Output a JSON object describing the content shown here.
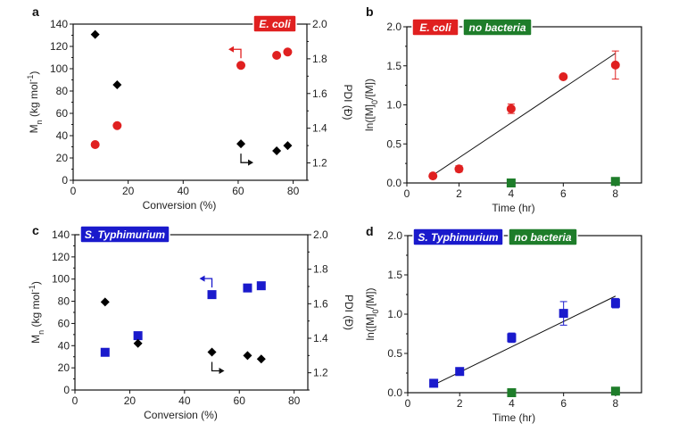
{
  "colors": {
    "ecoli": "#e02020",
    "typhimurium": "#1a1acc",
    "no_bacteria": "#1e7d2a",
    "pdi": "#000000",
    "fit": "#000000"
  },
  "chart_data": [
    {
      "panel": "a",
      "type": "scatter",
      "badge": "E. coli",
      "xlabel": "Conversion (%)",
      "ylabel": "Mn (kg mol-1)",
      "ylabel_parts": {
        "main": "M",
        "sub": "n",
        "rest": " (kg mol",
        "sup": "-1",
        "close": ")"
      },
      "y2label": "PDI (Đ)",
      "xlim": [
        0,
        85
      ],
      "ylim": [
        0,
        140
      ],
      "y2lim": [
        1.1,
        2.0
      ],
      "xticks": [
        0,
        20,
        40,
        60,
        80
      ],
      "yticks": [
        0,
        20,
        40,
        60,
        80,
        100,
        120,
        140
      ],
      "y2ticks": [
        1.2,
        1.4,
        1.6,
        1.8,
        2.0
      ],
      "y2tick_labels": [
        "1.2",
        "1.4",
        "1.6",
        "1.8",
        "2.0"
      ],
      "series": [
        {
          "name": "Mn",
          "axis": "left",
          "marker": "circle",
          "color_key": "ecoli",
          "x": [
            8,
            16,
            61,
            74,
            78
          ],
          "y": [
            32,
            49,
            103,
            112,
            115
          ]
        },
        {
          "name": "PDI",
          "axis": "right",
          "marker": "diamond",
          "color_key": "pdi",
          "x": [
            8,
            16,
            61,
            74,
            78
          ],
          "y": [
            1.94,
            1.65,
            1.31,
            1.27,
            1.3
          ]
        }
      ]
    },
    {
      "panel": "b",
      "type": "scatter",
      "badges": [
        "E. coli",
        "no bacteria"
      ],
      "xlabel": "Time (hr)",
      "ylabel": "ln([M]0/[M])",
      "ylabel_parts": {
        "main": "ln([M]",
        "sub": "0",
        "rest": "/[M])"
      },
      "xlim": [
        0,
        9
      ],
      "ylim": [
        0,
        2.0
      ],
      "xticks": [
        0,
        2,
        4,
        6,
        8
      ],
      "yticks": [
        0,
        0.5,
        1.0,
        1.5,
        2.0
      ],
      "ytick_labels": [
        "0.0",
        "0.5",
        "1.0",
        "1.5",
        "2.0"
      ],
      "series": [
        {
          "name": "E. coli",
          "marker": "circle",
          "color_key": "ecoli",
          "x": [
            1,
            2,
            4,
            6,
            8
          ],
          "y": [
            0.09,
            0.18,
            0.95,
            1.36,
            1.51
          ],
          "err": [
            0,
            0.04,
            0.06,
            0,
            0.18
          ]
        },
        {
          "name": "no bacteria",
          "marker": "square",
          "color_key": "no_bacteria",
          "x": [
            4,
            8
          ],
          "y": [
            0.0,
            0.02
          ],
          "err": [
            0,
            0
          ]
        }
      ],
      "fit": {
        "x": [
          1,
          8
        ],
        "y": [
          0.1,
          1.66
        ]
      }
    },
    {
      "panel": "c",
      "type": "scatter",
      "badge": "S. Typhimurium",
      "xlabel": "Conversion (%)",
      "ylabel": "Mn (kg mol-1)",
      "ylabel_parts": {
        "main": "M",
        "sub": "n",
        "rest": " (kg mol",
        "sup": "-1",
        "close": ")"
      },
      "y2label": "PDI (Đ)",
      "xlim": [
        0,
        85
      ],
      "ylim": [
        0,
        140
      ],
      "y2lim": [
        1.1,
        2.0
      ],
      "xticks": [
        0,
        20,
        40,
        60,
        80
      ],
      "yticks": [
        0,
        20,
        40,
        60,
        80,
        100,
        120,
        140
      ],
      "y2ticks": [
        1.2,
        1.4,
        1.6,
        1.8,
        2.0
      ],
      "y2tick_labels": [
        "1.2",
        "1.4",
        "1.6",
        "1.8",
        "2.0"
      ],
      "series": [
        {
          "name": "Mn",
          "axis": "left",
          "marker": "square",
          "color_key": "typhimurium",
          "x": [
            11,
            23,
            50,
            63,
            68
          ],
          "y": [
            34,
            49,
            86,
            92,
            94
          ]
        },
        {
          "name": "PDI",
          "axis": "right",
          "marker": "diamond",
          "color_key": "pdi",
          "x": [
            11,
            23,
            50,
            63,
            68
          ],
          "y": [
            1.61,
            1.37,
            1.32,
            1.3,
            1.28
          ]
        }
      ]
    },
    {
      "panel": "d",
      "type": "scatter",
      "badges": [
        "S. Typhimurium",
        "no bacteria"
      ],
      "xlabel": "Time (hr)",
      "ylabel": "ln([M]0/[M])",
      "ylabel_parts": {
        "main": "ln([M]",
        "sub": "0",
        "rest": "/[M])"
      },
      "xlim": [
        0,
        9
      ],
      "ylim": [
        0,
        2.0
      ],
      "xticks": [
        0,
        2,
        4,
        6,
        8
      ],
      "yticks": [
        0,
        0.5,
        1.0,
        1.5,
        2.0
      ],
      "ytick_labels": [
        "0.0",
        "0.5",
        "1.0",
        "1.5",
        "2.0"
      ],
      "series": [
        {
          "name": "S. Typhimurium",
          "marker": "square",
          "color_key": "typhimurium",
          "x": [
            1,
            2,
            4,
            6,
            8
          ],
          "y": [
            0.12,
            0.27,
            0.7,
            1.01,
            1.14
          ],
          "err": [
            0,
            0,
            0.06,
            0.15,
            0.06
          ]
        },
        {
          "name": "no bacteria",
          "marker": "square",
          "color_key": "no_bacteria",
          "x": [
            4,
            8
          ],
          "y": [
            0.0,
            0.02
          ],
          "err": [
            0,
            0
          ]
        }
      ],
      "fit": {
        "x": [
          1,
          8
        ],
        "y": [
          0.1,
          1.23
        ]
      }
    }
  ]
}
